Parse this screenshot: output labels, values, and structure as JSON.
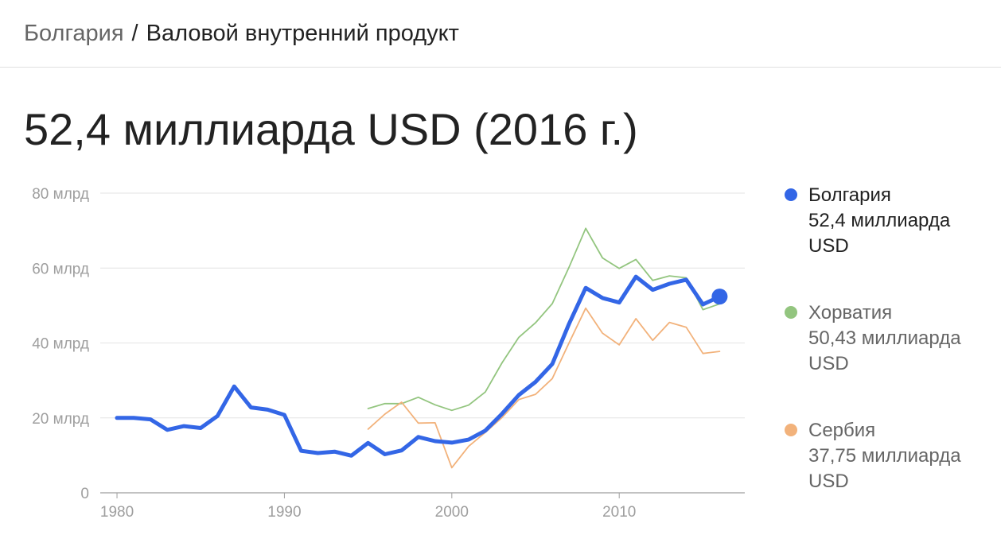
{
  "breadcrumb": {
    "parent": "Болгария",
    "separator": "/",
    "current": "Валовой внутренний продукт"
  },
  "headline": "52,4 миллиарда USD (2016 г.)",
  "legend": [
    {
      "name": "Болгария",
      "value": "52,4 миллиарда USD",
      "color": "#3366e6"
    },
    {
      "name": "Хорватия",
      "value": "50,43 миллиарда USD",
      "color": "#93c57f"
    },
    {
      "name": "Сербия",
      "value": "37,75 миллиарда USD",
      "color": "#f2b27b"
    }
  ],
  "chart_data": {
    "type": "line",
    "xlim": [
      1979,
      2017.5
    ],
    "ylim": [
      0,
      80
    ],
    "x_ticks": [
      1980,
      1990,
      2000,
      2010
    ],
    "y_ticks": [
      {
        "value": 0,
        "label": "0"
      },
      {
        "value": 20,
        "label": "20 млрд"
      },
      {
        "value": 40,
        "label": "40 млрд"
      },
      {
        "value": 60,
        "label": "60 млрд"
      },
      {
        "value": 80,
        "label": "80 млрд"
      }
    ],
    "grid": true,
    "series": [
      {
        "name": "Болгария",
        "color": "#3366e6",
        "highlight_last": true,
        "x": [
          1980,
          1981,
          1982,
          1983,
          1984,
          1985,
          1986,
          1987,
          1988,
          1989,
          1990,
          1991,
          1992,
          1993,
          1994,
          1995,
          1996,
          1997,
          1998,
          1999,
          2000,
          2001,
          2002,
          2003,
          2004,
          2005,
          2006,
          2007,
          2008,
          2009,
          2010,
          2011,
          2012,
          2013,
          2014,
          2015,
          2016
        ],
        "values": [
          20.0,
          20.0,
          19.6,
          16.8,
          17.8,
          17.3,
          20.5,
          28.4,
          22.8,
          22.2,
          20.8,
          11.2,
          10.6,
          11.0,
          9.9,
          13.3,
          10.3,
          11.3,
          14.9,
          13.8,
          13.4,
          14.2,
          16.6,
          21.1,
          26.1,
          29.6,
          34.4,
          45.1,
          54.7,
          52.0,
          50.8,
          57.7,
          54.2,
          55.8,
          56.9,
          50.3,
          52.4
        ]
      },
      {
        "name": "Хорватия",
        "color": "#93c57f",
        "highlight_last": false,
        "x": [
          1995,
          1996,
          1997,
          1998,
          1999,
          2000,
          2001,
          2002,
          2003,
          2004,
          2005,
          2006,
          2007,
          2008,
          2009,
          2010,
          2011,
          2012,
          2013,
          2014,
          2015,
          2016
        ],
        "values": [
          22.5,
          23.8,
          23.8,
          25.5,
          23.5,
          22.0,
          23.4,
          26.9,
          34.7,
          41.5,
          45.4,
          50.5,
          60.2,
          70.6,
          62.7,
          59.9,
          62.3,
          56.7,
          57.9,
          57.4,
          48.9,
          50.43
        ]
      },
      {
        "name": "Сербия",
        "color": "#f2b27b",
        "highlight_last": false,
        "x": [
          1995,
          1996,
          1997,
          1998,
          1999,
          2000,
          2001,
          2002,
          2003,
          2004,
          2005,
          2006,
          2007,
          2008,
          2009,
          2010,
          2011,
          2012,
          2013,
          2014,
          2015,
          2016
        ],
        "values": [
          17.0,
          21.0,
          24.2,
          18.6,
          18.7,
          6.7,
          12.4,
          16.1,
          20.1,
          24.9,
          26.3,
          30.5,
          40.0,
          49.3,
          42.6,
          39.5,
          46.5,
          40.7,
          45.5,
          44.2,
          37.2,
          37.75
        ]
      }
    ]
  }
}
